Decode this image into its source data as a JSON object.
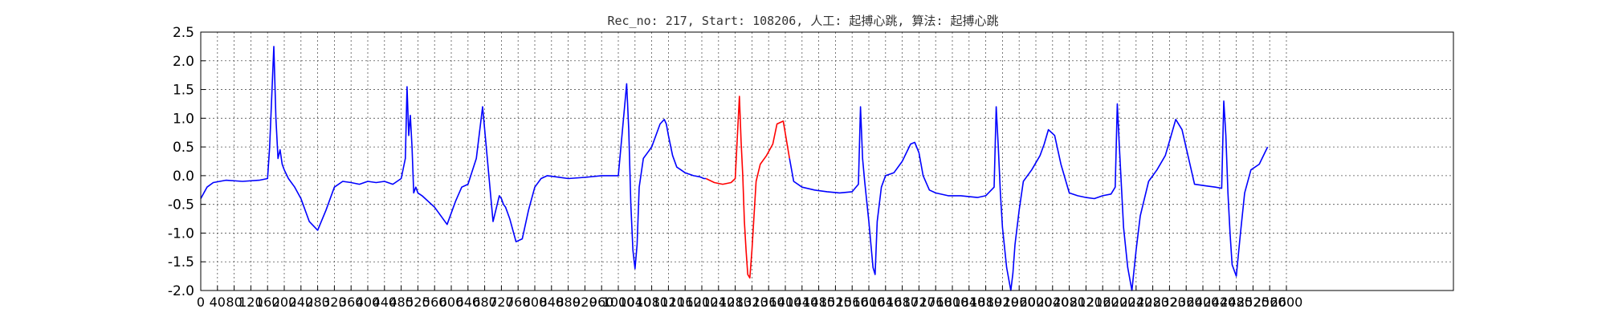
{
  "chart_data": {
    "type": "line",
    "title": "Rec_no: 217, Start: 108206, 人工: 起搏心跳, 算法: 起搏心跳",
    "xlabel": "",
    "ylabel": "",
    "xlim": [
      0,
      3000
    ],
    "ylim": [
      -2.0,
      2.5
    ],
    "grid": true,
    "yticks": [
      "-2.0",
      "-1.5",
      "-1.0",
      "-0.5",
      "0.0",
      "0.5",
      "1.0",
      "1.5",
      "2.0",
      "2.5"
    ],
    "xticks": [
      "0",
      "40",
      "80",
      "120",
      "160",
      "200",
      "240",
      "280",
      "320",
      "360",
      "400",
      "440",
      "480",
      "520",
      "560",
      "600",
      "640",
      "680",
      "720",
      "760",
      "800",
      "840",
      "880",
      "920",
      "960",
      "1000",
      "1040",
      "1080",
      "1120",
      "1160",
      "1200",
      "1240",
      "1280",
      "1320",
      "1360",
      "1400",
      "1440",
      "1480",
      "1520",
      "1560",
      "1600",
      "1640",
      "1680",
      "1720",
      "1760",
      "1800",
      "1840",
      "1880",
      "1920",
      "1960",
      "2000",
      "2040",
      "2080",
      "2120",
      "2160",
      "2200",
      "2240",
      "2280",
      "2320",
      "2360",
      "2400",
      "2440",
      "2480",
      "2520",
      "2560",
      "2600"
    ],
    "series": [
      {
        "color": "#0000ff",
        "x": [
          0,
          15,
          30,
          60,
          100,
          140,
          160,
          165,
          175,
          180,
          185,
          190,
          195,
          200,
          210,
          225,
          240,
          260,
          280,
          300,
          320,
          340,
          360,
          380,
          400,
          420,
          440,
          460,
          480,
          490,
          494,
          498,
          502,
          506,
          510,
          515,
          520,
          530,
          560,
          590,
          610,
          625,
          640,
          660,
          675,
          700,
          715,
          720,
          725,
          730,
          740,
          755,
          770,
          785,
          800,
          815,
          830,
          850,
          880,
          920,
          960,
          1000,
          1020,
          1025,
          1030,
          1035,
          1040,
          1045,
          1050,
          1060,
          1070,
          1080,
          1100,
          1110,
          1115,
          1120,
          1130,
          1140,
          1150,
          1160,
          1180,
          1195,
          1205,
          1210
        ],
        "y": [
          -0.4,
          -0.2,
          -0.12,
          -0.08,
          -0.1,
          -0.08,
          -0.05,
          0.5,
          2.25,
          1.0,
          0.3,
          0.45,
          0.2,
          0.1,
          -0.05,
          -0.2,
          -0.4,
          -0.8,
          -0.95,
          -0.6,
          -0.2,
          -0.1,
          -0.12,
          -0.15,
          -0.1,
          -0.12,
          -0.1,
          -0.15,
          -0.05,
          0.3,
          1.55,
          0.7,
          1.05,
          0.5,
          -0.3,
          -0.2,
          -0.3,
          -0.35,
          -0.55,
          -0.85,
          -0.45,
          -0.2,
          -0.15,
          0.3,
          1.2,
          -0.8,
          -0.35,
          -0.4,
          -0.5,
          -0.55,
          -0.75,
          -1.15,
          -1.1,
          -0.6,
          -0.2,
          -0.05,
          0.0,
          -0.02,
          -0.05,
          -0.03,
          0.0,
          0.0,
          1.6,
          0.8,
          -0.5,
          -1.3,
          -1.62,
          -1.2,
          -0.2,
          0.3,
          0.4,
          0.5,
          0.9,
          0.98,
          0.9,
          0.7,
          0.35,
          0.15,
          0.1,
          0.05,
          0.0,
          -0.02,
          -0.05,
          -0.05
        ]
      },
      {
        "color": "#ff0000",
        "x": [
          1210,
          1230,
          1250,
          1270,
          1280,
          1290,
          1294,
          1298,
          1302,
          1306,
          1310,
          1315,
          1320,
          1325,
          1330,
          1340,
          1355,
          1370,
          1380,
          1395,
          1410
        ],
        "y": [
          -0.05,
          -0.12,
          -0.15,
          -0.12,
          -0.05,
          1.38,
          0.6,
          0.0,
          -0.8,
          -1.3,
          -1.72,
          -1.78,
          -1.3,
          -0.7,
          -0.1,
          0.2,
          0.35,
          0.55,
          0.9,
          0.95,
          0.3
        ]
      },
      {
        "color": "#0000ff",
        "x": [
          1410,
          1420,
          1440,
          1470,
          1500,
          1530,
          1560,
          1575,
          1580,
          1585,
          1590,
          1600,
          1610,
          1615,
          1620,
          1630,
          1640,
          1660,
          1680,
          1700,
          1710,
          1720,
          1730,
          1745,
          1760,
          1790,
          1820,
          1860,
          1880,
          1900,
          1905,
          1910,
          1915,
          1920,
          1930,
          1940,
          1945,
          1950,
          1960,
          1970,
          1990,
          2010,
          2020,
          2030,
          2045,
          2060,
          2080,
          2100,
          2120,
          2140,
          2160,
          2180,
          2190,
          2195,
          2200,
          2205,
          2210,
          2220,
          2230,
          2240,
          2250,
          2270,
          2290,
          2310,
          2320,
          2335,
          2350,
          2380,
          2410,
          2430,
          2445,
          2450,
          2455,
          2460,
          2465,
          2470,
          2480,
          2490,
          2500,
          2515,
          2535,
          2555
        ],
        "y": [
          0.3,
          -0.1,
          -0.2,
          -0.25,
          -0.28,
          -0.3,
          -0.28,
          -0.15,
          1.2,
          0.3,
          -0.1,
          -0.8,
          -1.6,
          -1.72,
          -0.8,
          -0.2,
          0.0,
          0.05,
          0.25,
          0.55,
          0.58,
          0.4,
          0.0,
          -0.25,
          -0.3,
          -0.35,
          -0.35,
          -0.38,
          -0.35,
          -0.2,
          1.2,
          0.5,
          -0.3,
          -0.9,
          -1.6,
          -2.0,
          -1.7,
          -1.2,
          -0.6,
          -0.1,
          0.1,
          0.35,
          0.55,
          0.8,
          0.7,
          0.2,
          -0.3,
          -0.35,
          -0.38,
          -0.4,
          -0.35,
          -0.32,
          -0.2,
          1.25,
          0.5,
          -0.2,
          -0.9,
          -1.6,
          -2.0,
          -1.3,
          -0.7,
          -0.1,
          0.1,
          0.35,
          0.6,
          0.98,
          0.8,
          -0.15,
          -0.18,
          -0.2,
          -0.22,
          1.3,
          0.7,
          -0.3,
          -1.0,
          -1.55,
          -1.75,
          -1.0,
          -0.3,
          0.1,
          0.2,
          0.5
        ]
      }
    ]
  }
}
